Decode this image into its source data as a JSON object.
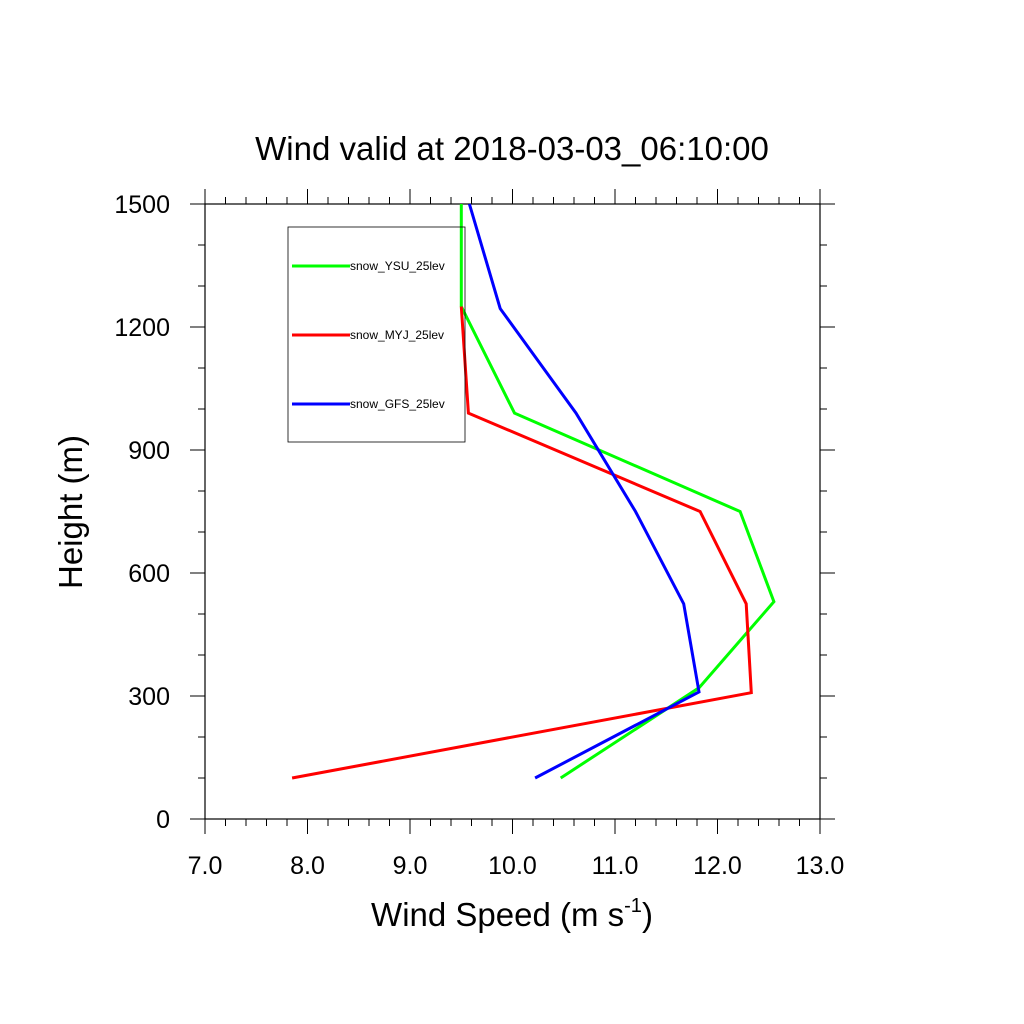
{
  "chart_data": {
    "type": "line",
    "title": "Wind valid at 2018-03-03_06:10:00",
    "xlabel": "Wind Speed (m s",
    "xlabel_sup": "-1",
    "xlabel_end": ")",
    "ylabel": "Height (m)",
    "xlim": [
      7.0,
      13.0
    ],
    "ylim": [
      0,
      1500
    ],
    "x_ticks": [
      7.0,
      8.0,
      9.0,
      10.0,
      11.0,
      12.0,
      13.0
    ],
    "x_tick_labels": [
      "7.0",
      "8.0",
      "9.0",
      "10.0",
      "11.0",
      "12.0",
      "13.0"
    ],
    "y_ticks": [
      0,
      300,
      600,
      900,
      1200,
      1500
    ],
    "y_tick_labels": [
      "0",
      "300",
      "600",
      "900",
      "1200",
      "1500"
    ],
    "grid": false,
    "legend_position": "top-left",
    "series": [
      {
        "name": "snow_YSU_25lev",
        "color": "#00ff00",
        "x": [
          10.47,
          11.82,
          12.55,
          12.22,
          10.02,
          9.5,
          9.5
        ],
        "y": [
          100,
          320,
          530,
          750,
          990,
          1250,
          1500
        ]
      },
      {
        "name": "snow_MYJ_25lev",
        "color": "#ff0000",
        "x": [
          7.85,
          12.33,
          12.28,
          11.83,
          9.57,
          9.5
        ],
        "y": [
          100,
          308,
          525,
          750,
          990,
          1250
        ]
      },
      {
        "name": "snow_GFS_25lev",
        "color": "#0000ff",
        "x": [
          10.22,
          11.82,
          11.67,
          11.2,
          10.62,
          9.88,
          9.58
        ],
        "y": [
          100,
          310,
          525,
          750,
          990,
          1245,
          1500
        ]
      }
    ]
  }
}
